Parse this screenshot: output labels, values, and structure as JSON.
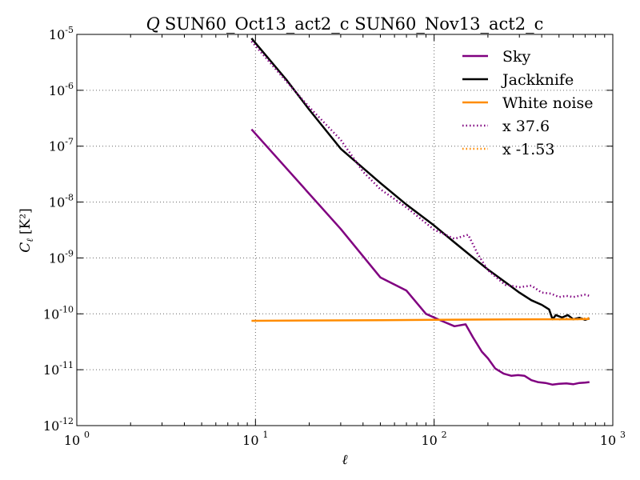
{
  "chart_data": {
    "type": "line",
    "title": "Q SUN60_Oct13_act2_c SUN60_Nov13_act2_c",
    "title_symbol": "Q",
    "title_rest": "SUN60_Oct13_act2_c SUN60_Nov13_act2_c",
    "xlabel": "ℓ",
    "ylabel": "C_ℓ [K²]",
    "ylabel_main": "C",
    "ylabel_sub": "ℓ",
    "ylabel_unit": "[K²]",
    "x_scale": "log",
    "y_scale": "log",
    "xlim": [
      1,
      1000
    ],
    "ylim": [
      1e-12,
      1e-05
    ],
    "x_ticks": [
      {
        "value": 1,
        "base": "10",
        "exp": "0"
      },
      {
        "value": 10,
        "base": "10",
        "exp": "1"
      },
      {
        "value": 100,
        "base": "10",
        "exp": "2"
      },
      {
        "value": 1000,
        "base": "10",
        "exp": "3"
      }
    ],
    "y_ticks": [
      {
        "value": 1e-12,
        "base": "10",
        "exp": "-12"
      },
      {
        "value": 1e-11,
        "base": "10",
        "exp": "-11"
      },
      {
        "value": 1e-10,
        "base": "10",
        "exp": "-10"
      },
      {
        "value": 1e-09,
        "base": "10",
        "exp": "-9"
      },
      {
        "value": 1e-08,
        "base": "10",
        "exp": "-8"
      },
      {
        "value": 1e-07,
        "base": "10",
        "exp": "-7"
      },
      {
        "value": 1e-06,
        "base": "10",
        "exp": "-6"
      },
      {
        "value": 1e-05,
        "base": "10",
        "exp": "-5"
      }
    ],
    "grid": true,
    "legend_position": "top-right",
    "series": [
      {
        "name": "Sky",
        "color": "#800080",
        "style": "solid",
        "x": [
          9.5,
          30,
          50,
          70,
          90,
          110,
          130,
          150,
          165,
          185,
          200,
          220,
          245,
          270,
          295,
          320,
          350,
          380,
          420,
          460,
          500,
          550,
          600,
          650,
          700,
          740
        ],
        "y": [
          2e-07,
          3.3e-09,
          4.5e-10,
          2.6e-10,
          1e-10,
          7.5e-11,
          6e-11,
          6.5e-11,
          3.8e-11,
          2.1e-11,
          1.6e-11,
          1.05e-11,
          8.5e-12,
          7.8e-12,
          8e-12,
          7.8e-12,
          6.5e-12,
          6e-12,
          5.8e-12,
          5.4e-12,
          5.6e-12,
          5.7e-12,
          5.5e-12,
          5.8e-12,
          5.9e-12,
          6e-12
        ]
      },
      {
        "name": "Jackknife",
        "color": "#000000",
        "style": "solid",
        "x": [
          9.5,
          15,
          20,
          30,
          50,
          70,
          100,
          130,
          160,
          200,
          250,
          300,
          350,
          400,
          440,
          460,
          480,
          520,
          560,
          600,
          650,
          700,
          740
        ],
        "y": [
          8.5e-06,
          1.5e-06,
          4.5e-07,
          9e-08,
          2.2e-08,
          9e-09,
          3.8e-09,
          1.9e-09,
          1.1e-09,
          6.2e-10,
          3.7e-10,
          2.4e-10,
          1.75e-10,
          1.45e-10,
          1.2e-10,
          8e-11,
          9.5e-11,
          8.6e-11,
          9.5e-11,
          8e-11,
          8.5e-11,
          7.8e-11,
          8.3e-11
        ]
      },
      {
        "name": "White noise",
        "color": "#ff8c00",
        "style": "solid",
        "x": [
          9.5,
          20,
          50,
          100,
          200,
          400,
          600,
          740
        ],
        "y": [
          7.5e-11,
          7.6e-11,
          7.7e-11,
          7.8e-11,
          7.9e-11,
          8e-11,
          8e-11,
          8.1e-11
        ]
      },
      {
        "name": "x 37.6",
        "color": "#800080",
        "style": "dotted",
        "x": [
          9.5,
          15,
          20,
          30,
          40,
          50,
          70,
          100,
          130,
          155,
          175,
          200,
          250,
          300,
          350,
          400,
          450,
          500,
          550,
          600,
          650,
          700,
          740
        ],
        "y": [
          7.5e-06,
          1.4e-06,
          5e-07,
          1.3e-07,
          3.5e-08,
          1.7e-08,
          8e-09,
          3.2e-09,
          2.2e-09,
          2.6e-09,
          1.2e-09,
          6e-10,
          3.3e-10,
          3e-10,
          3.2e-10,
          2.4e-10,
          2.3e-10,
          2e-10,
          2.1e-10,
          2e-10,
          2.1e-10,
          2.2e-10,
          2.1e-10
        ]
      },
      {
        "name": "x -1.53",
        "color": "#ff8c00",
        "style": "dotted",
        "x": [
          500,
          560,
          620,
          680,
          740
        ],
        "y": [
          7.9e-11,
          8.3e-11,
          8e-11,
          8.2e-11,
          8.4e-11
        ]
      }
    ]
  }
}
